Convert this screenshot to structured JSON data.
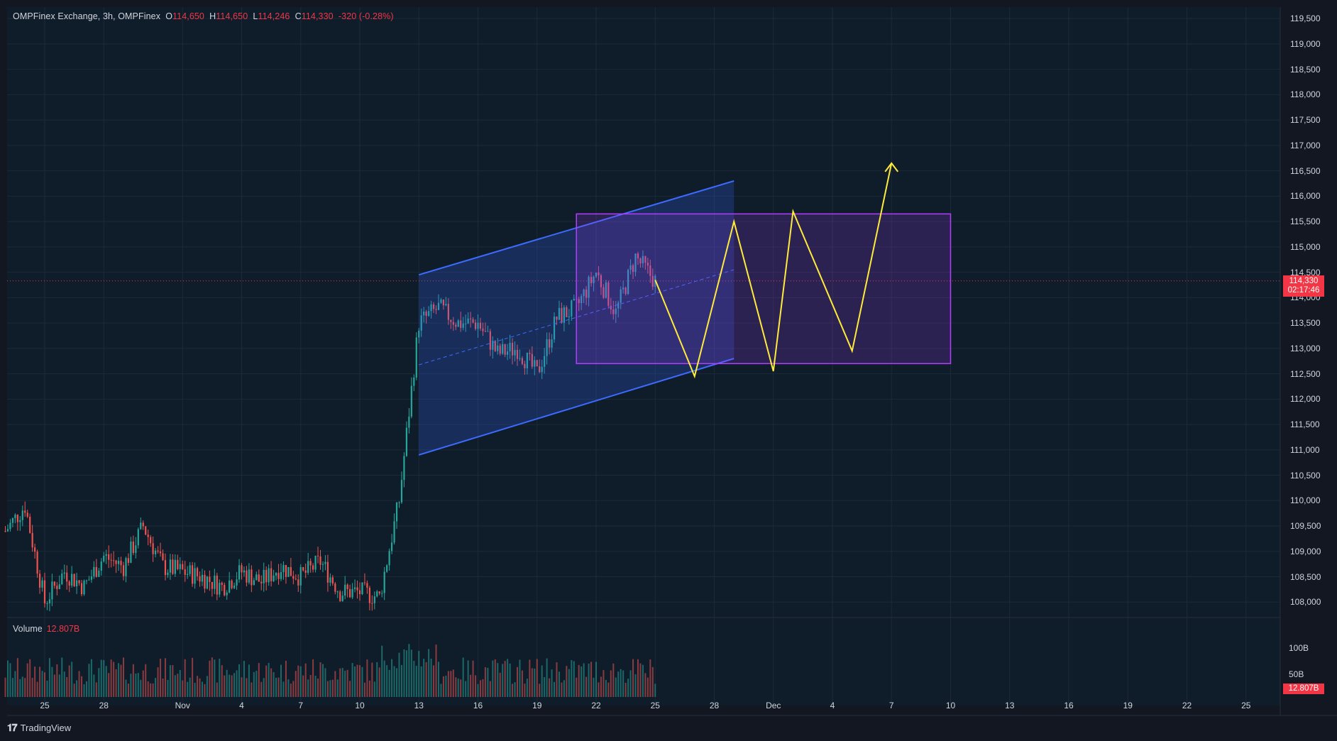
{
  "header": {
    "symbol": "OMPFinex Exchange, 3h, OMPFinex",
    "open_label": "O",
    "open": "114,650",
    "high_label": "H",
    "high": "114,650",
    "low_label": "L",
    "low": "114,246",
    "close_label": "C",
    "close": "114,330",
    "change": "-320 (-0.28%)"
  },
  "volume": {
    "label": "Volume",
    "value": "12.807B"
  },
  "price_tag": {
    "price": "114,330",
    "countdown": "02:17:46"
  },
  "volume_tag": "12.807B",
  "brand": {
    "name": "TradingView",
    "icon": "tradingview-logo-icon"
  },
  "colors": {
    "background": "#131722",
    "up": "#26a69a",
    "down": "#ef5350",
    "channel": "#3d6bff",
    "range_box": "#b43cff",
    "projection": "#ffeb3b",
    "last_price": "#f23645"
  },
  "chart_data": {
    "type": "candlestick",
    "interval": "3h",
    "y_axis": {
      "ticks": [
        "108,000",
        "108,500",
        "109,000",
        "109,500",
        "110,000",
        "110,500",
        "111,000",
        "111,500",
        "112,000",
        "112,500",
        "113,000",
        "113,500",
        "114,000",
        "114,500",
        "115,000",
        "115,500",
        "116,000",
        "116,500",
        "117,000",
        "117,500",
        "118,000",
        "118,500",
        "119,000",
        "119,500"
      ],
      "range": [
        107850,
        119600
      ]
    },
    "volume_axis": {
      "ticks": [
        "50B",
        "100B"
      ]
    },
    "x_axis": {
      "ticks": [
        "25",
        "28",
        "Nov",
        "4",
        "7",
        "10",
        "13",
        "16",
        "19",
        "22",
        "25",
        "28",
        "Dec",
        "4",
        "7",
        "10",
        "13",
        "16",
        "19",
        "22",
        "25"
      ]
    },
    "price_path": [
      [
        "Oct 23",
        109400
      ],
      [
        "Oct 24",
        109900
      ],
      [
        "Oct 25",
        108000
      ],
      [
        "Oct 26",
        108600
      ],
      [
        "Oct 27",
        108300
      ],
      [
        "Oct 28",
        108900
      ],
      [
        "Oct 29",
        108700
      ],
      [
        "Oct 30",
        109500
      ],
      [
        "Oct 31",
        108700
      ],
      [
        "Nov 1",
        108600
      ],
      [
        "Nov 2",
        108500
      ],
      [
        "Nov 3",
        108300
      ],
      [
        "Nov 4",
        108600
      ],
      [
        "Nov 5",
        108400
      ],
      [
        "Nov 6",
        108700
      ],
      [
        "Nov 7",
        108500
      ],
      [
        "Nov 8",
        108800
      ],
      [
        "Nov 9",
        108200
      ],
      [
        "Nov 10",
        108200
      ],
      [
        "Nov 11",
        108100
      ],
      [
        "Nov 12",
        110000
      ],
      [
        "Nov 13",
        113500
      ],
      [
        "Nov 14",
        113800
      ],
      [
        "Nov 15",
        113500
      ],
      [
        "Nov 16",
        113500
      ],
      [
        "Nov 17",
        112900
      ],
      [
        "Nov 18",
        113000
      ],
      [
        "Nov 19",
        112500
      ],
      [
        "Nov 20",
        113600
      ],
      [
        "Nov 21",
        113800
      ],
      [
        "Nov 22",
        114500
      ],
      [
        "Nov 23",
        113700
      ],
      [
        "Nov 24",
        114800
      ],
      [
        "Nov 25",
        114330
      ]
    ],
    "last_price": 114330,
    "drawings": {
      "ascending_channel": {
        "upper": [
          [
            "Nov 13",
            114450
          ],
          [
            "Nov 29",
            116300
          ]
        ],
        "lower": [
          [
            "Nov 13",
            110900
          ],
          [
            "Nov 29",
            112800
          ]
        ]
      },
      "range_box": {
        "from": "Nov 21",
        "to": "Dec 10",
        "top": 115650,
        "bottom": 112700
      },
      "projection": [
        [
          "Nov 25",
          114350
        ],
        [
          "Nov 27",
          112450
        ],
        [
          "Nov 29",
          115500
        ],
        [
          "Dec 1",
          112550
        ],
        [
          "Dec 2",
          115700
        ],
        [
          "Dec 5",
          112950
        ],
        [
          "Dec 7",
          116650
        ]
      ]
    }
  }
}
